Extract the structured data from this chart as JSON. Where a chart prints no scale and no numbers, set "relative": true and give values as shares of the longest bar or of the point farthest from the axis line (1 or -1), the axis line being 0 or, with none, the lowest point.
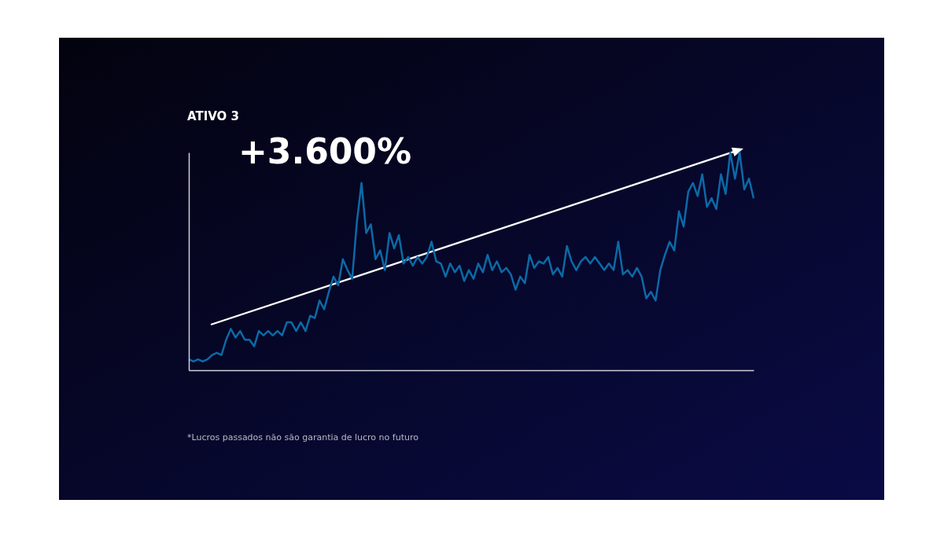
{
  "chart_data": {
    "type": "line",
    "title": "ATIVO 3",
    "relative": true,
    "legend": false,
    "categories": [
      null,
      null,
      null,
      null,
      null,
      null,
      null,
      null,
      null,
      null,
      null,
      null,
      null,
      null,
      null,
      null,
      null,
      null,
      null,
      null,
      null,
      null,
      null,
      null,
      null,
      null,
      null,
      null,
      null,
      null,
      null,
      null,
      null,
      null,
      null,
      null,
      null,
      null,
      null,
      null,
      null,
      null,
      null,
      null,
      null,
      null,
      null,
      null,
      null,
      null,
      null,
      null,
      null,
      null,
      null,
      null,
      null,
      null,
      null,
      null,
      null,
      null,
      null,
      null,
      null,
      null,
      null,
      null,
      null,
      null,
      null,
      null,
      null,
      null,
      null,
      null,
      null,
      null,
      null,
      null,
      null,
      null,
      null,
      null,
      null,
      null,
      null,
      null,
      null,
      null,
      null,
      null,
      null,
      null,
      null,
      null,
      null,
      null,
      null,
      null,
      null,
      null,
      null,
      null,
      null,
      null,
      null,
      null,
      null,
      null,
      null,
      null,
      null,
      null,
      null,
      null,
      null,
      null,
      null,
      null,
      null,
      null
    ],
    "series": [
      {
        "color": "#0b6aa6",
        "values": [
          0.05,
          0.04,
          0.05,
          0.04,
          0.05,
          0.07,
          0.08,
          0.07,
          0.14,
          0.19,
          0.15,
          0.18,
          0.14,
          0.14,
          0.11,
          0.18,
          0.16,
          0.18,
          0.16,
          0.18,
          0.16,
          0.22,
          0.22,
          0.18,
          0.22,
          0.18,
          0.25,
          0.24,
          0.32,
          0.28,
          0.36,
          0.43,
          0.39,
          0.51,
          0.46,
          0.42,
          0.68,
          0.86,
          0.63,
          0.67,
          0.51,
          0.55,
          0.46,
          0.63,
          0.56,
          0.62,
          0.49,
          0.52,
          0.48,
          0.52,
          0.49,
          0.52,
          0.59,
          0.5,
          0.49,
          0.43,
          0.49,
          0.45,
          0.48,
          0.41,
          0.46,
          0.42,
          0.49,
          0.45,
          0.53,
          0.46,
          0.5,
          0.45,
          0.47,
          0.44,
          0.37,
          0.43,
          0.4,
          0.53,
          0.47,
          0.5,
          0.49,
          0.52,
          0.44,
          0.47,
          0.43,
          0.57,
          0.5,
          0.46,
          0.5,
          0.52,
          0.49,
          0.52,
          0.49,
          0.46,
          0.49,
          0.46,
          0.59,
          0.44,
          0.46,
          0.43,
          0.47,
          0.43,
          0.33,
          0.36,
          0.32,
          0.46,
          0.53,
          0.59,
          0.55,
          0.73,
          0.66,
          0.82,
          0.86,
          0.8,
          0.9,
          0.75,
          0.79,
          0.74,
          0.9,
          0.81,
          1.0,
          0.88,
          1.0,
          0.83,
          0.88,
          0.79
        ]
      }
    ],
    "annotations": [
      "+3.600%",
      "*Lucros passados não são garantia de lucro no futuro"
    ]
  }
}
